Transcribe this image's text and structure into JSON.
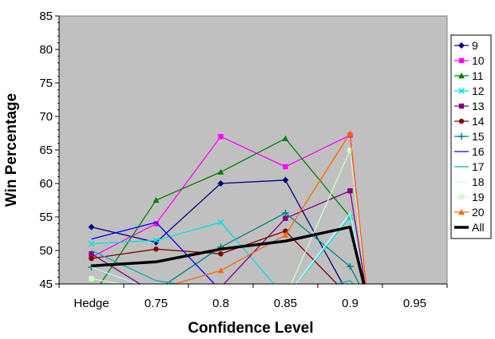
{
  "chart_data": {
    "type": "line",
    "title": "",
    "xlabel": "Confidence Level",
    "ylabel": "Win Percentage",
    "categories": [
      "Hedge",
      "0.75",
      "0.8",
      "0.85",
      "0.9",
      "0.95"
    ],
    "ylim": [
      45,
      85
    ],
    "yticks": [
      "45",
      "50",
      "55",
      "60",
      "65",
      "70",
      "75",
      "80",
      "85"
    ],
    "grid": false,
    "plot_background": "#c0c0c0",
    "legend_position": "right",
    "series": [
      {
        "name": "9",
        "color": "#000080",
        "marker": "diamond",
        "values": [
          53.5,
          51.2,
          60.0,
          60.5,
          43.0,
          null
        ]
      },
      {
        "name": "10",
        "color": "#ff00ff",
        "marker": "square",
        "values": [
          49.0,
          54.0,
          67.0,
          62.5,
          67.2,
          null
        ]
      },
      {
        "name": "11",
        "color": "#008000",
        "marker": "triangle",
        "values": [
          43.0,
          57.5,
          61.7,
          66.7,
          55.0,
          null
        ]
      },
      {
        "name": "12",
        "color": "#00e0e0",
        "marker": "x",
        "values": [
          51.0,
          51.5,
          54.2,
          43.0,
          55.0,
          null
        ]
      },
      {
        "name": "13",
        "color": "#800080",
        "marker": "square",
        "values": [
          49.5,
          43.5,
          44.5,
          54.8,
          58.9,
          null
        ]
      },
      {
        "name": "14",
        "color": "#800000",
        "marker": "circle",
        "values": [
          48.8,
          50.2,
          49.5,
          52.9,
          43.0,
          null
        ]
      },
      {
        "name": "15",
        "color": "#008080",
        "marker": "plus",
        "values": [
          47.5,
          44.0,
          50.5,
          55.6,
          47.6,
          null
        ]
      },
      {
        "name": "16",
        "color": "#0000ff",
        "marker": "none",
        "values": [
          51.7,
          54.2,
          44.0,
          43.0,
          43.0,
          null
        ]
      },
      {
        "name": "17",
        "color": "#00b0b0",
        "marker": "none",
        "values": [
          50.0,
          45.5,
          44.0,
          43.0,
          45.5,
          null
        ]
      },
      {
        "name": "18",
        "color": "#ccffff",
        "marker": "none",
        "values": [
          47.5,
          44.0,
          43.5,
          43.0,
          55.5,
          null
        ]
      },
      {
        "name": "19",
        "color": "#ccffcc",
        "marker": "square",
        "values": [
          45.8,
          44.0,
          43.5,
          43.0,
          65.0,
          null
        ]
      },
      {
        "name": "20",
        "color": "#ff6600",
        "marker": "triangle",
        "values": [
          43.0,
          44.2,
          47.0,
          52.3,
          67.5,
          null
        ]
      },
      {
        "name": "All",
        "color": "#000000",
        "marker": "none",
        "values": [
          47.7,
          48.3,
          50.2,
          51.4,
          53.5,
          null
        ]
      }
    ]
  }
}
